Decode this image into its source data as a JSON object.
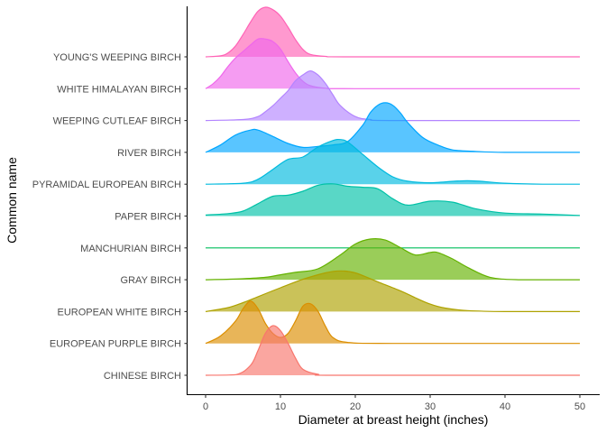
{
  "chart_data": {
    "type": "ridgeline",
    "xlabel": "Diameter at breast height (inches)",
    "ylabel": "Common name",
    "xlim": [
      0,
      50
    ],
    "x_ticks": [
      0,
      10,
      20,
      30,
      40,
      50
    ],
    "grid": false,
    "legend": "none",
    "categories": [
      "CHINESE BIRCH",
      "EUROPEAN PURPLE BIRCH",
      "EUROPEAN WHITE BIRCH",
      "GRAY BIRCH",
      "MANCHURIAN BIRCH",
      "PAPER BIRCH",
      "PYRAMIDAL EUROPEAN BIRCH",
      "RIVER BIRCH",
      "WEEPING CUTLEAF BIRCH",
      "WHITE HIMALAYAN BIRCH",
      "YOUNG'S WEEPING BIRCH"
    ],
    "series": [
      {
        "name": "CHINESE BIRCH",
        "color": "#F8766D",
        "x": [
          0,
          4,
          6,
          7,
          8,
          9,
          10,
          11,
          12,
          13,
          15,
          18,
          50
        ],
        "density": [
          0,
          0.01,
          0.2,
          0.5,
          0.85,
          1.0,
          0.9,
          0.65,
          0.35,
          0.12,
          0.02,
          0,
          0
        ]
      },
      {
        "name": "EUROPEAN PURPLE BIRCH",
        "color": "#DB8E00",
        "x": [
          0,
          2,
          4,
          5,
          6,
          7,
          8,
          9,
          10,
          11,
          12,
          13,
          14,
          15,
          16,
          17,
          19,
          25,
          50
        ],
        "density": [
          0,
          0.15,
          0.45,
          0.7,
          0.85,
          0.7,
          0.4,
          0.2,
          0.12,
          0.2,
          0.45,
          0.75,
          0.8,
          0.65,
          0.35,
          0.12,
          0.02,
          0,
          0
        ]
      },
      {
        "name": "EUROPEAN WHITE BIRCH",
        "color": "#AEA200",
        "x": [
          0,
          3,
          5,
          7,
          10,
          13,
          16,
          18,
          20,
          23,
          26,
          28,
          30,
          32,
          35,
          40,
          50
        ],
        "density": [
          0,
          0.08,
          0.18,
          0.3,
          0.48,
          0.65,
          0.78,
          0.82,
          0.78,
          0.6,
          0.42,
          0.28,
          0.15,
          0.07,
          0.02,
          0,
          0
        ]
      },
      {
        "name": "GRAY BIRCH",
        "color": "#64B200",
        "x": [
          0,
          5,
          8,
          10,
          12,
          15,
          18,
          20,
          22,
          24,
          26,
          28,
          30,
          31,
          33,
          35,
          38,
          42,
          50
        ],
        "density": [
          0,
          0.02,
          0.05,
          0.1,
          0.15,
          0.22,
          0.5,
          0.72,
          0.82,
          0.8,
          0.65,
          0.5,
          0.55,
          0.55,
          0.42,
          0.25,
          0.05,
          0,
          0
        ]
      },
      {
        "name": "MANCHURIAN BIRCH",
        "color": "#00BD5C",
        "x": [
          0,
          50
        ],
        "density": [
          0,
          0
        ]
      },
      {
        "name": "PAPER BIRCH",
        "color": "#00C1A7",
        "x": [
          0,
          3,
          5,
          7,
          9,
          11,
          13,
          15,
          17,
          19,
          21,
          23,
          25,
          27,
          30,
          33,
          36,
          40,
          45,
          50
        ],
        "density": [
          0.02,
          0.05,
          0.1,
          0.25,
          0.4,
          0.42,
          0.5,
          0.62,
          0.65,
          0.6,
          0.58,
          0.55,
          0.35,
          0.22,
          0.3,
          0.28,
          0.15,
          0.06,
          0.04,
          0.01
        ]
      },
      {
        "name": "PYRAMIDAL EUROPEAN BIRCH",
        "color": "#00BADE",
        "x": [
          0,
          5,
          7,
          9,
          11,
          13,
          15,
          17,
          18,
          19,
          21,
          23,
          25,
          27,
          30,
          35,
          40,
          45,
          50
        ],
        "density": [
          0,
          0.02,
          0.1,
          0.3,
          0.5,
          0.55,
          0.75,
          0.88,
          0.9,
          0.85,
          0.6,
          0.35,
          0.15,
          0.06,
          0.03,
          0.07,
          0.02,
          0,
          0
        ]
      },
      {
        "name": "RIVER BIRCH",
        "color": "#00A6FF",
        "x": [
          0,
          2,
          4,
          6,
          7,
          9,
          11,
          13,
          15,
          17,
          19,
          21,
          22,
          23,
          24,
          25,
          26,
          27,
          29,
          31,
          33,
          36,
          40,
          50
        ],
        "density": [
          0,
          0.15,
          0.35,
          0.45,
          0.45,
          0.32,
          0.18,
          0.1,
          0.12,
          0.15,
          0.22,
          0.55,
          0.8,
          0.95,
          1.0,
          0.95,
          0.8,
          0.6,
          0.3,
          0.15,
          0.05,
          0.02,
          0,
          0
        ]
      },
      {
        "name": "WEEPING CUTLEAF BIRCH",
        "color": "#B385FF",
        "x": [
          0,
          5,
          7,
          8,
          9,
          10,
          11,
          12,
          13,
          14,
          15,
          16,
          17,
          18,
          20,
          22,
          25,
          50
        ],
        "density": [
          0,
          0.02,
          0.08,
          0.18,
          0.3,
          0.45,
          0.6,
          0.8,
          0.92,
          1.0,
          0.92,
          0.75,
          0.52,
          0.3,
          0.08,
          0.02,
          0,
          0
        ]
      },
      {
        "name": "WHITE HIMALAYAN BIRCH",
        "color": "#EF67EB",
        "x": [
          0,
          1,
          2,
          3,
          4,
          5,
          6,
          7,
          8,
          9,
          10,
          11,
          12,
          13,
          14,
          16,
          20,
          50
        ],
        "density": [
          0,
          0.1,
          0.25,
          0.45,
          0.62,
          0.75,
          0.88,
          1.0,
          1.0,
          0.95,
          0.8,
          0.55,
          0.32,
          0.15,
          0.06,
          0.01,
          0,
          0
        ]
      },
      {
        "name": "YOUNG'S WEEPING BIRCH",
        "color": "#FF63B6",
        "x": [
          0,
          2,
          3,
          4,
          5,
          6,
          7,
          8,
          9,
          10,
          11,
          12,
          13,
          14,
          16,
          20,
          50
        ],
        "density": [
          0,
          0.02,
          0.08,
          0.22,
          0.45,
          0.7,
          0.92,
          1.0,
          0.95,
          0.82,
          0.6,
          0.35,
          0.15,
          0.05,
          0.01,
          0,
          0
        ]
      }
    ]
  }
}
